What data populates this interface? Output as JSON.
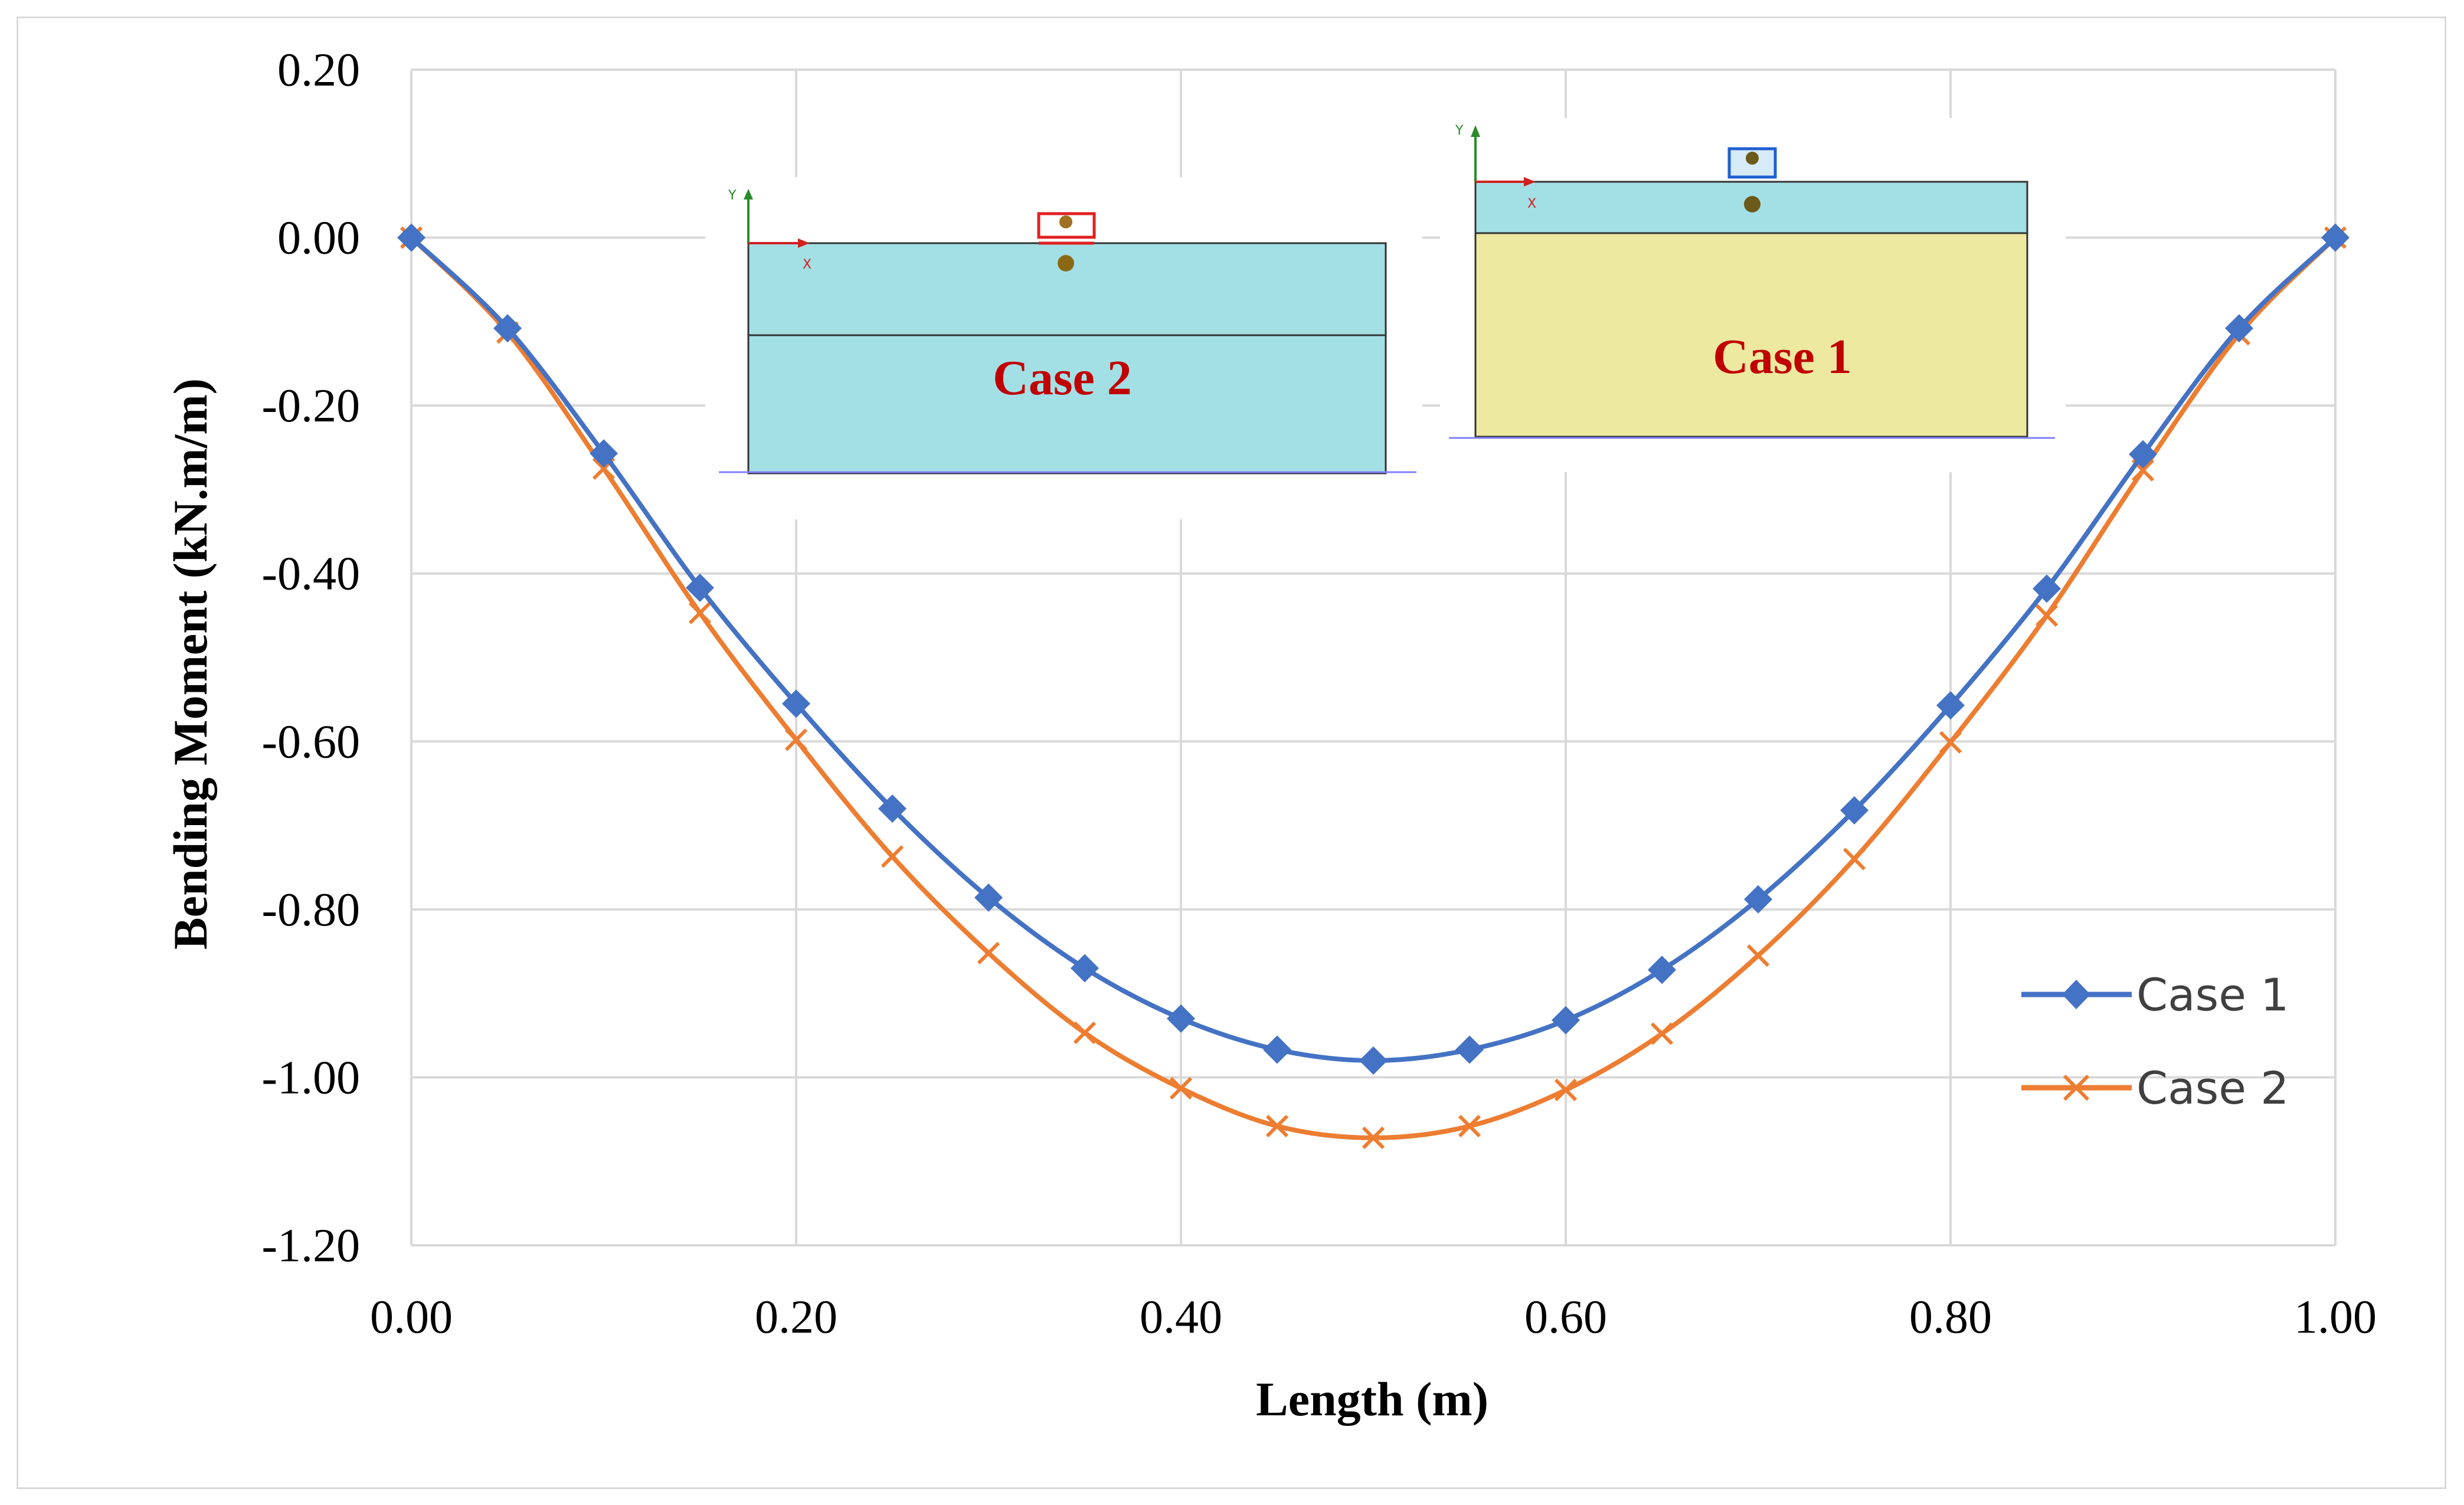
{
  "chart_data": {
    "type": "line",
    "title": "",
    "xlabel": "Length (m)",
    "ylabel": "Bending Moment (kN.m/m)",
    "xlim": [
      0,
      1
    ],
    "ylim": [
      -1.2,
      0.2
    ],
    "x_ticks": [
      "0.00",
      "0.20",
      "0.40",
      "0.60",
      "0.80",
      "1.00"
    ],
    "y_ticks": [
      "0.20",
      "0.00",
      "-0.20",
      "-0.40",
      "-0.60",
      "-0.80",
      "-1.00",
      "-1.20"
    ],
    "grid": true,
    "legend_position": "right",
    "x": [
      0,
      0.05,
      0.1,
      0.15,
      0.2,
      0.25,
      0.3,
      0.35,
      0.4,
      0.45,
      0.5,
      0.55,
      0.6,
      0.65,
      0.7,
      0.75,
      0.8,
      0.85,
      0.9,
      0.95,
      1.0
    ],
    "series": [
      {
        "name": "Case 1",
        "color": "#4472c4",
        "marker": "diamond",
        "values": [
          0.0,
          -0.108,
          -0.257,
          -0.417,
          -0.555,
          -0.68,
          -0.786,
          -0.87,
          -0.93,
          -0.967,
          -0.98,
          -0.967,
          -0.932,
          -0.872,
          -0.788,
          -0.682,
          -0.557,
          -0.418,
          -0.258,
          -0.108,
          0.0
        ]
      },
      {
        "name": "Case 2",
        "color": "#ed7d31",
        "marker": "x",
        "values": [
          0.0,
          -0.113,
          -0.275,
          -0.447,
          -0.598,
          -0.737,
          -0.852,
          -0.947,
          -1.013,
          -1.058,
          -1.072,
          -1.058,
          -1.015,
          -0.948,
          -0.855,
          -0.74,
          -0.601,
          -0.45,
          -0.277,
          -0.115,
          0.0
        ]
      }
    ],
    "insets": [
      {
        "label": "Case 2",
        "color": "#c00000"
      },
      {
        "label": "Case 1",
        "color": "#c00000"
      }
    ]
  }
}
